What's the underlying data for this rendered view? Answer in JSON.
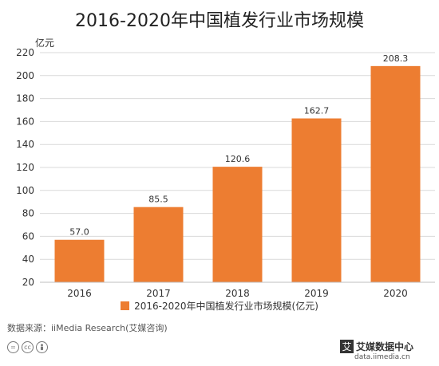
{
  "title": "2016-2020年中国植发行业市场规模",
  "unit_label": "亿元",
  "source": "数据来源：iiMedia Research(艾媒咨询)",
  "brand": {
    "name": "艾媒数据中心",
    "url": "data.iimedia.cn",
    "mark": "艾"
  },
  "license_icons": [
    "=",
    "cc",
    "person"
  ],
  "colors": {
    "bar": "#ED7D31",
    "grid": "#D9D9D9",
    "axis": "#BFBFBF"
  },
  "chart_data": {
    "type": "bar",
    "title": "2016-2020年中国植发行业市场规模",
    "ylabel": "亿元",
    "categories": [
      "2016",
      "2017",
      "2018",
      "2019",
      "2020"
    ],
    "series": [
      {
        "name": "2016-2020年中国植发行业市场规模(亿元)",
        "values": [
          57.0,
          85.5,
          120.6,
          162.7,
          208.3
        ]
      }
    ],
    "value_labels": [
      "57.0",
      "85.5",
      "120.6",
      "162.7",
      "208.3"
    ],
    "ylim": [
      20,
      220
    ],
    "yticks": [
      20,
      40,
      60,
      80,
      100,
      120,
      140,
      160,
      180,
      200,
      220
    ],
    "grid": true,
    "legend": "bottom"
  }
}
